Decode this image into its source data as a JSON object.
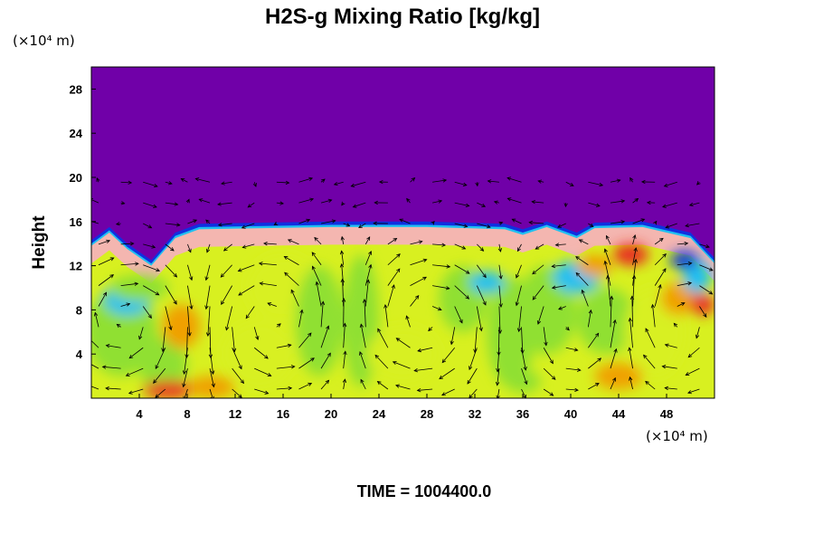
{
  "chart_data": {
    "type": "heatmap",
    "title": "H2S-g Mixing Ratio [kg/kg]",
    "ylabel": "Height",
    "x_unit": "(×10⁴ m)",
    "y_unit": "(×10⁴ m)",
    "xlim": [
      0,
      52
    ],
    "ylim": [
      0,
      30
    ],
    "x_ticks": [
      4,
      8,
      12,
      16,
      20,
      24,
      28,
      32,
      36,
      40,
      44,
      48
    ],
    "y_ticks": [
      4,
      8,
      12,
      16,
      20,
      24,
      28
    ],
    "grid": false,
    "overlay": "wind vector arrows",
    "colors": {
      "background_top": "#7000a8",
      "interface_band": "#f4b6b0",
      "low_field": "#d8f020",
      "mid_field": "#90e030",
      "high_pockets": "#f0a000",
      "hot_spots": "#e83020",
      "cool_spots": "#20c0f0",
      "deep_blue": "#1030e0",
      "arrow": "#000000"
    },
    "interface_profile": [
      {
        "x": 0,
        "height": 13.8
      },
      {
        "x": 1.5,
        "height": 15.0
      },
      {
        "x": 3,
        "height": 13.5
      },
      {
        "x": 5,
        "height": 12.0
      },
      {
        "x": 7,
        "height": 14.5
      },
      {
        "x": 9,
        "height": 15.3
      },
      {
        "x": 20,
        "height": 15.5
      },
      {
        "x": 28,
        "height": 15.5
      },
      {
        "x": 34.5,
        "height": 15.3
      },
      {
        "x": 36,
        "height": 14.8
      },
      {
        "x": 38,
        "height": 15.5
      },
      {
        "x": 40.5,
        "height": 14.5
      },
      {
        "x": 42,
        "height": 15.4
      },
      {
        "x": 46,
        "height": 15.5
      },
      {
        "x": 50,
        "height": 14.5
      },
      {
        "x": 52,
        "height": 12.2
      }
    ],
    "time_label": "TIME = 1004400.0"
  }
}
